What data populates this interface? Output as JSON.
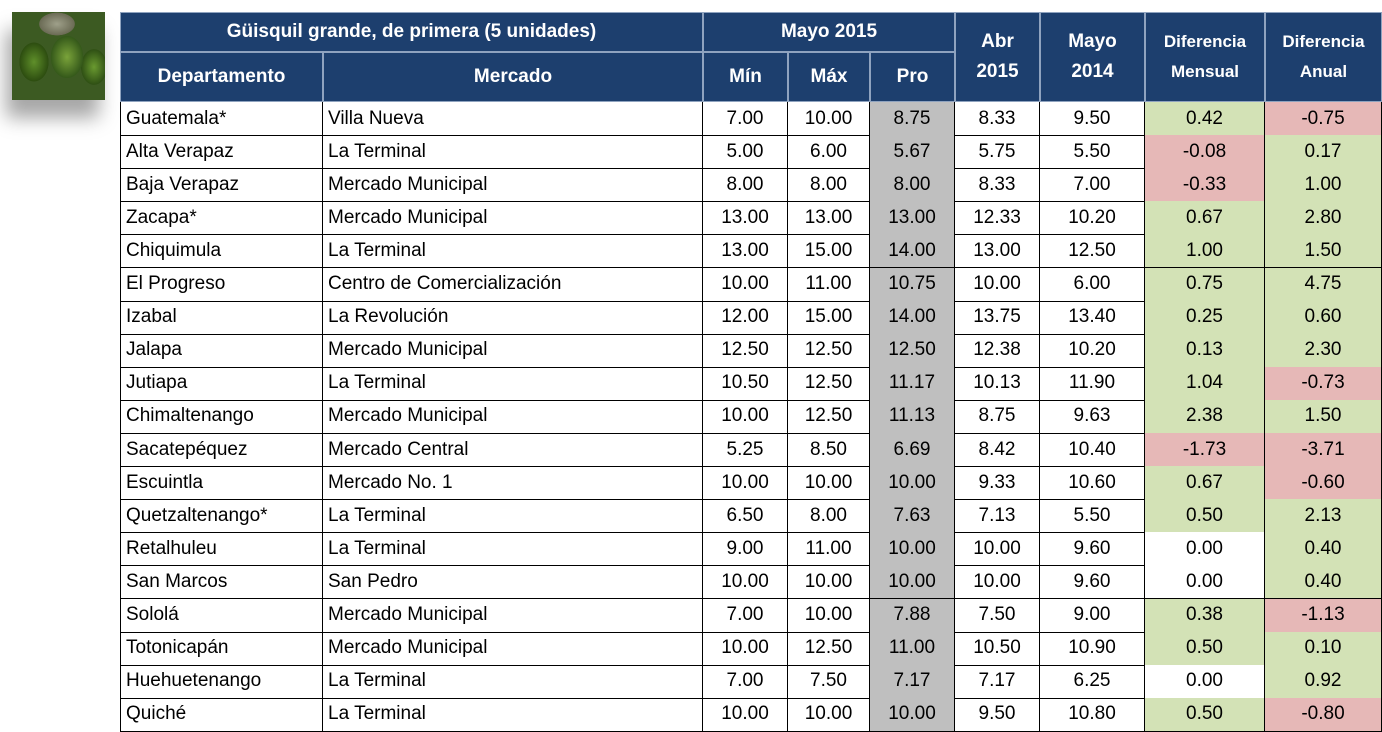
{
  "header": {
    "title": "Güisquil grande, de primera (5 unidades)",
    "group": "Mayo 2015",
    "columns": [
      [
        "Departamento"
      ],
      [
        "Mercado"
      ],
      [
        "Mín"
      ],
      [
        "Máx"
      ],
      [
        "Pro"
      ],
      [
        "Abr",
        "2015"
      ],
      [
        "Mayo",
        "2014"
      ],
      [
        "Diferencia",
        "Mensual"
      ],
      [
        "Diferencia",
        "Anual"
      ]
    ]
  },
  "table": {
    "rows": [
      [
        "Guatemala*",
        "Villa Nueva",
        "7.00",
        "10.00",
        "8.75",
        "8.33",
        "9.50",
        "0.42",
        "-0.75"
      ],
      [
        "Alta Verapaz",
        "La Terminal",
        "5.00",
        "6.00",
        "5.67",
        "5.75",
        "5.50",
        "-0.08",
        "0.17"
      ],
      [
        "Baja Verapaz",
        "Mercado Municipal",
        "8.00",
        "8.00",
        "8.00",
        "8.33",
        "7.00",
        "-0.33",
        "1.00"
      ],
      [
        "Zacapa*",
        "Mercado Municipal",
        "13.00",
        "13.00",
        "13.00",
        "12.33",
        "10.20",
        "0.67",
        "2.80"
      ],
      [
        "Chiquimula",
        "La Terminal",
        "13.00",
        "15.00",
        "14.00",
        "13.00",
        "12.50",
        "1.00",
        "1.50"
      ],
      [
        "El Progreso",
        "Centro de Comercialización",
        "10.00",
        "11.00",
        "10.75",
        "10.00",
        "6.00",
        "0.75",
        "4.75"
      ],
      [
        "Izabal",
        "La Revolución",
        "12.00",
        "15.00",
        "14.00",
        "13.75",
        "13.40",
        "0.25",
        "0.60"
      ],
      [
        "Jalapa",
        "Mercado Municipal",
        "12.50",
        "12.50",
        "12.50",
        "12.38",
        "10.20",
        "0.13",
        "2.30"
      ],
      [
        "Jutiapa",
        "La Terminal",
        "10.50",
        "12.50",
        "11.17",
        "10.13",
        "11.90",
        "1.04",
        "-0.73"
      ],
      [
        "Chimaltenango",
        "Mercado Municipal",
        "10.00",
        "12.50",
        "11.13",
        "8.75",
        "9.63",
        "2.38",
        "1.50"
      ],
      [
        "Sacatepéquez",
        "Mercado Central",
        "5.25",
        "8.50",
        "6.69",
        "8.42",
        "10.40",
        "-1.73",
        "-3.71"
      ],
      [
        "Escuintla",
        "Mercado No. 1",
        "10.00",
        "10.00",
        "10.00",
        "9.33",
        "10.60",
        "0.67",
        "-0.60"
      ],
      [
        "Quetzaltenango*",
        "La Terminal",
        "6.50",
        "8.00",
        "7.63",
        "7.13",
        "5.50",
        "0.50",
        "2.13"
      ],
      [
        "Retalhuleu",
        "La Terminal",
        "9.00",
        "11.00",
        "10.00",
        "10.00",
        "9.60",
        "0.00",
        "0.40"
      ],
      [
        "San Marcos",
        "San Pedro",
        "10.00",
        "10.00",
        "10.00",
        "10.00",
        "9.60",
        "0.00",
        "0.40"
      ],
      [
        "Sololá",
        "Mercado Municipal",
        "7.00",
        "10.00",
        "7.88",
        "7.50",
        "9.00",
        "0.38",
        "-1.13"
      ],
      [
        "Totonicapán",
        "Mercado Municipal",
        "10.00",
        "12.50",
        "11.00",
        "10.50",
        "10.90",
        "0.50",
        "0.10"
      ],
      [
        "Huehuetenango",
        "La Terminal",
        "7.00",
        "7.50",
        "7.17",
        "7.17",
        "6.25",
        "0.00",
        "0.92"
      ],
      [
        "Quiché",
        "La Terminal",
        "10.00",
        "10.00",
        "10.00",
        "9.50",
        "10.80",
        "0.50",
        "-0.80"
      ]
    ]
  }
}
